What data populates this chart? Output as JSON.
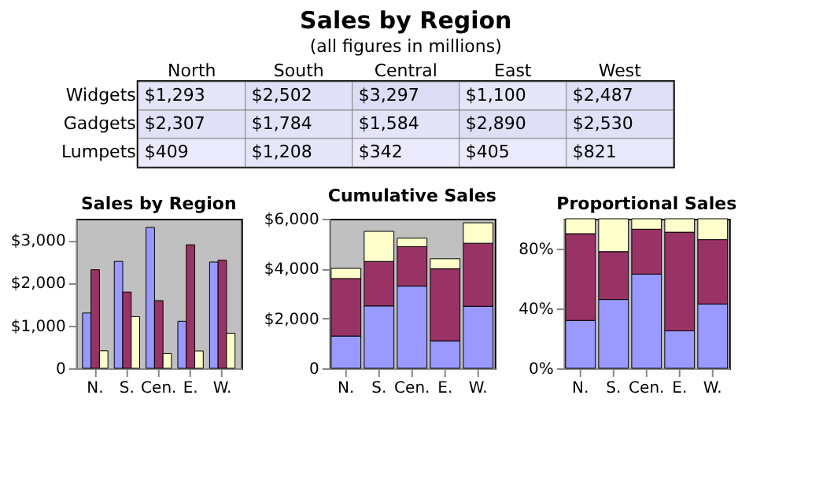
{
  "chart_data": [
    {
      "type": "heatmap",
      "title": "Sales by Region",
      "subtitle": "(all figures in millions)",
      "categories": [
        "North",
        "South",
        "Central",
        "East",
        "West"
      ],
      "y_categories": [
        "Widgets",
        "Gadgets",
        "Lumpets"
      ],
      "cells": [
        [
          1293,
          2502,
          3297,
          1100,
          2487
        ],
        [
          2307,
          1784,
          1584,
          2890,
          2530
        ],
        [
          409,
          1208,
          342,
          405,
          821
        ]
      ],
      "cell_labels": [
        [
          "$1,293",
          "$2,502",
          "$3,297",
          "$1,100",
          "$2,487"
        ],
        [
          "$2,307",
          "$1,784",
          "$1,584",
          "$2,890",
          "$2,530"
        ],
        [
          "$409",
          "$1,208",
          "$342",
          "$405",
          "$821"
        ]
      ],
      "colors": [
        "#eaeafc",
        "#dcdcf4"
      ]
    },
    {
      "type": "bar",
      "title": "Sales by Region",
      "categories": [
        "N.",
        "S.",
        "Cen.",
        "E.",
        "W."
      ],
      "series": [
        {
          "color": "#9999ff",
          "values": [
            1293,
            2502,
            3297,
            1100,
            2487
          ]
        },
        {
          "color": "#993366",
          "values": [
            2307,
            1784,
            1584,
            2890,
            2530
          ]
        },
        {
          "color": "#ffffcc",
          "values": [
            409,
            1208,
            342,
            405,
            821
          ]
        }
      ],
      "ylim": [
        0,
        3500
      ],
      "yticks": [
        0,
        {
          "value": 1000,
          "label": "$1,000"
        },
        {
          "value": 2000,
          "label": "$2,000"
        },
        {
          "value": 3000,
          "label": "$3,000"
        }
      ],
      "grid": false,
      "legend": false
    },
    {
      "type": "bar",
      "stacked": true,
      "title": "Cumulative Sales",
      "categories": [
        "N.",
        "S.",
        "Cen.",
        "E.",
        "W."
      ],
      "series": [
        {
          "color": "#9999ff",
          "values": [
            1293,
            2502,
            3297,
            1100,
            2487
          ]
        },
        {
          "color": "#993366",
          "values": [
            2307,
            1784,
            1584,
            2890,
            2530
          ]
        },
        {
          "color": "#ffffcc",
          "values": [
            409,
            1208,
            342,
            405,
            821
          ]
        }
      ],
      "ylim": [
        0,
        6000
      ],
      "yticks": [
        0,
        {
          "value": 2000,
          "label": "$2,000"
        },
        {
          "value": 4000,
          "label": "$4,000"
        },
        {
          "value": 6000,
          "label": "$6,000"
        }
      ],
      "grid": false,
      "legend": false
    },
    {
      "type": "bar",
      "stacked": true,
      "title": "Proportional Sales",
      "categories": [
        "N.",
        "S.",
        "Cen.",
        "E.",
        "W."
      ],
      "series": [
        {
          "color": "#9999ff",
          "values": [
            32,
            46,
            63,
            25,
            43
          ]
        },
        {
          "color": "#993366",
          "values": [
            58,
            32,
            30,
            66,
            43
          ]
        },
        {
          "color": "#ffffcc",
          "values": [
            10,
            22,
            7,
            9,
            14
          ]
        }
      ],
      "ylim": [
        0,
        100
      ],
      "yticks": [
        {
          "value": 0,
          "label": "0%"
        },
        {
          "value": 40,
          "label": "40%"
        },
        {
          "value": 80,
          "label": "80%"
        }
      ],
      "grid": false,
      "legend": false
    }
  ]
}
